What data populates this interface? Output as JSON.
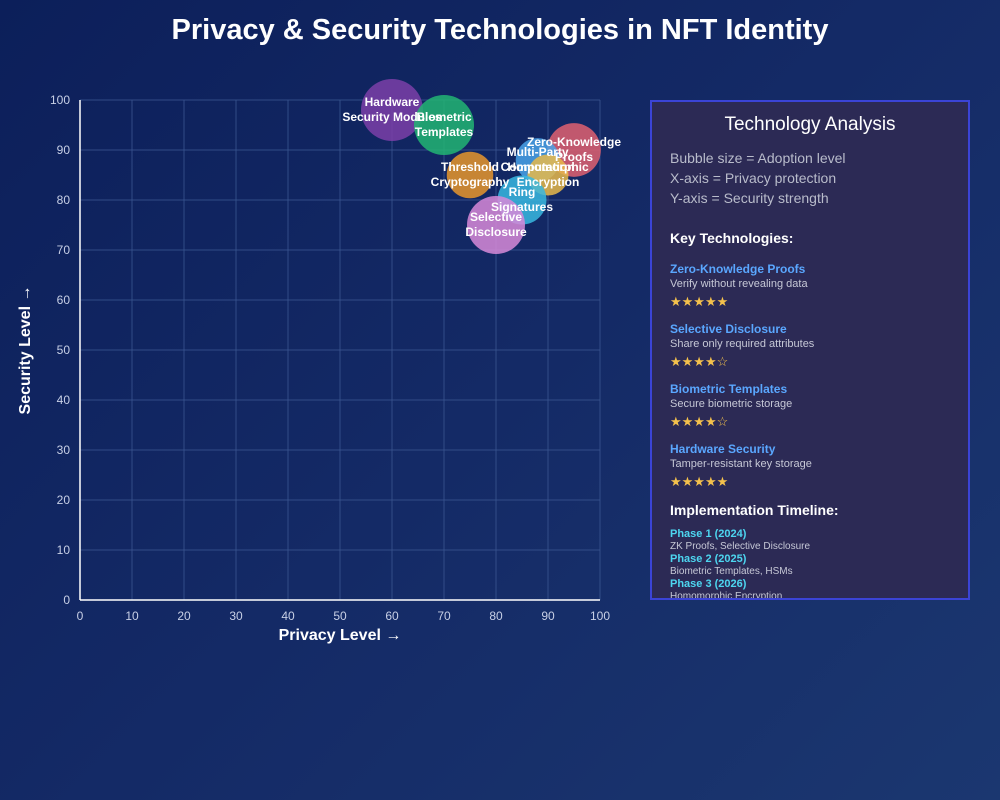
{
  "title": "Privacy & Security Technologies in NFT Identity",
  "chart_data": {
    "type": "scatter",
    "title": "Privacy & Security Technologies in NFT Identity",
    "xlabel": "Privacy Level →",
    "ylabel": "Security Level →",
    "xlim": [
      0,
      100
    ],
    "ylim": [
      0,
      100
    ],
    "xticks": [
      0,
      10,
      20,
      30,
      40,
      50,
      60,
      70,
      80,
      90,
      100
    ],
    "yticks": [
      0,
      10,
      20,
      30,
      40,
      50,
      60,
      70,
      80,
      90,
      100
    ],
    "grid": true,
    "size_meaning": "Adoption level",
    "points": [
      {
        "label": "Hardware Security Modules",
        "x": 60,
        "y": 98,
        "size": 80,
        "color": "#7b3fa8"
      },
      {
        "label": "Biometric Templates",
        "x": 70,
        "y": 95,
        "size": 75,
        "color": "#22b573"
      },
      {
        "label": "Zero-Knowledge Proofs",
        "x": 95,
        "y": 90,
        "size": 60,
        "color": "#e06070"
      },
      {
        "label": "Multi-Party Computation",
        "x": 88,
        "y": 88,
        "size": 40,
        "color": "#4aa3e8"
      },
      {
        "label": "Homomorphic Encryption",
        "x": 90,
        "y": 85,
        "size": 35,
        "color": "#e8b84a"
      },
      {
        "label": "Threshold Cryptography",
        "x": 75,
        "y": 85,
        "size": 45,
        "color": "#e8962c"
      },
      {
        "label": "Ring Signatures",
        "x": 85,
        "y": 80,
        "size": 50,
        "color": "#3ab8e0"
      },
      {
        "label": "Selective Disclosure",
        "x": 80,
        "y": 75,
        "size": 70,
        "color": "#d88ad8"
      }
    ]
  },
  "panel": {
    "title": "Technology Analysis",
    "desc": [
      "Bubble size = Adoption level",
      "X-axis = Privacy protection",
      "Y-axis = Security strength"
    ],
    "key_title": "Key Technologies:",
    "technologies": [
      {
        "name": "Zero-Knowledge Proofs",
        "desc": "Verify without revealing data",
        "stars": "★★★★★"
      },
      {
        "name": "Selective Disclosure",
        "desc": "Share only required attributes",
        "stars": "★★★★☆"
      },
      {
        "name": "Biometric Templates",
        "desc": "Secure biometric storage",
        "stars": "★★★★☆"
      },
      {
        "name": "Hardware Security",
        "desc": "Tamper-resistant key storage",
        "stars": "★★★★★"
      }
    ],
    "timeline_title": "Implementation Timeline:",
    "phases": [
      {
        "name": "Phase 1 (2024)",
        "items": "ZK Proofs, Selective Disclosure"
      },
      {
        "name": "Phase 2 (2025)",
        "items": "Biometric Templates, HSMs"
      },
      {
        "name": "Phase 3 (2026)",
        "items": "Homomorphic Encryption"
      }
    ]
  }
}
